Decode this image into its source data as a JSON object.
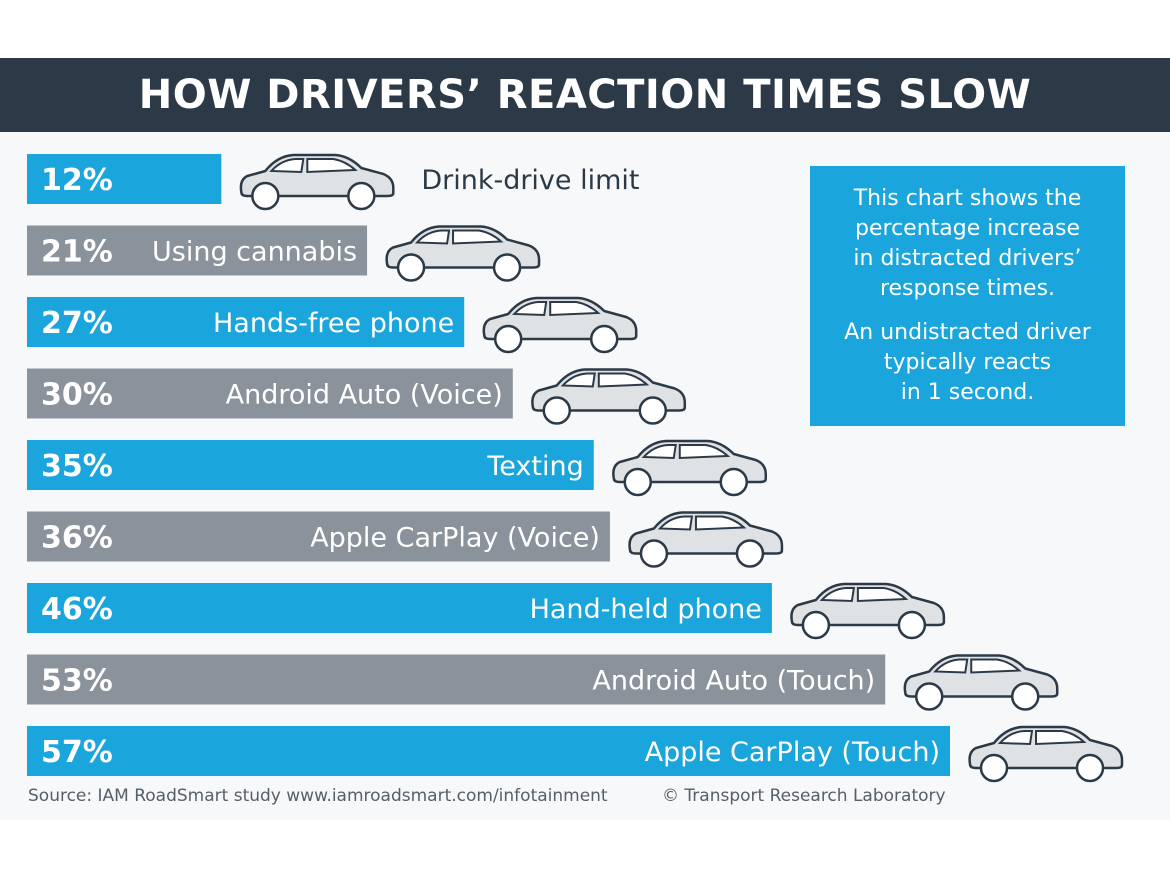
{
  "colors": {
    "title_bg": "#2c3a48",
    "blue": "#1aa5dd",
    "gray": "#8a939c",
    "panel_bg": "#f6f8fa"
  },
  "icons": {
    "bar_end_icon": "car-icon"
  },
  "chart_data": {
    "type": "bar",
    "orientation": "horizontal",
    "title": "HOW DRIVERS’ REACTION TIMES SLOW",
    "xlabel": "",
    "ylabel": "",
    "xlim": [
      0,
      57
    ],
    "grid": false,
    "categories": [
      "Drink-drive limit",
      "Using cannabis",
      "Hands-free phone",
      "Android Auto (Voice)",
      "Texting",
      "Apple CarPlay (Voice)",
      "Hand-held phone",
      "Android Auto (Touch)",
      "Apple CarPlay (Touch)"
    ],
    "values": [
      12,
      21,
      27,
      30,
      35,
      36,
      46,
      53,
      57
    ],
    "value_labels": [
      "12%",
      "21%",
      "27%",
      "30%",
      "35%",
      "36%",
      "46%",
      "53%",
      "57%"
    ],
    "bar_colors": [
      "#1aa5dd",
      "#8a939c",
      "#1aa5dd",
      "#8a939c",
      "#1aa5dd",
      "#8a939c",
      "#1aa5dd",
      "#8a939c",
      "#1aa5dd"
    ]
  },
  "info": {
    "line1": "This chart shows the",
    "line2": "percentage increase",
    "line3": "in distracted drivers’",
    "line4": "response times.",
    "line5": "An undistracted driver",
    "line6": "typically reacts",
    "line7": "in 1 second."
  },
  "footer": {
    "source": "Source: IAM RoadSmart study www.iamroadsmart.com/infotainment",
    "credit": "© Transport Research Laboratory"
  }
}
